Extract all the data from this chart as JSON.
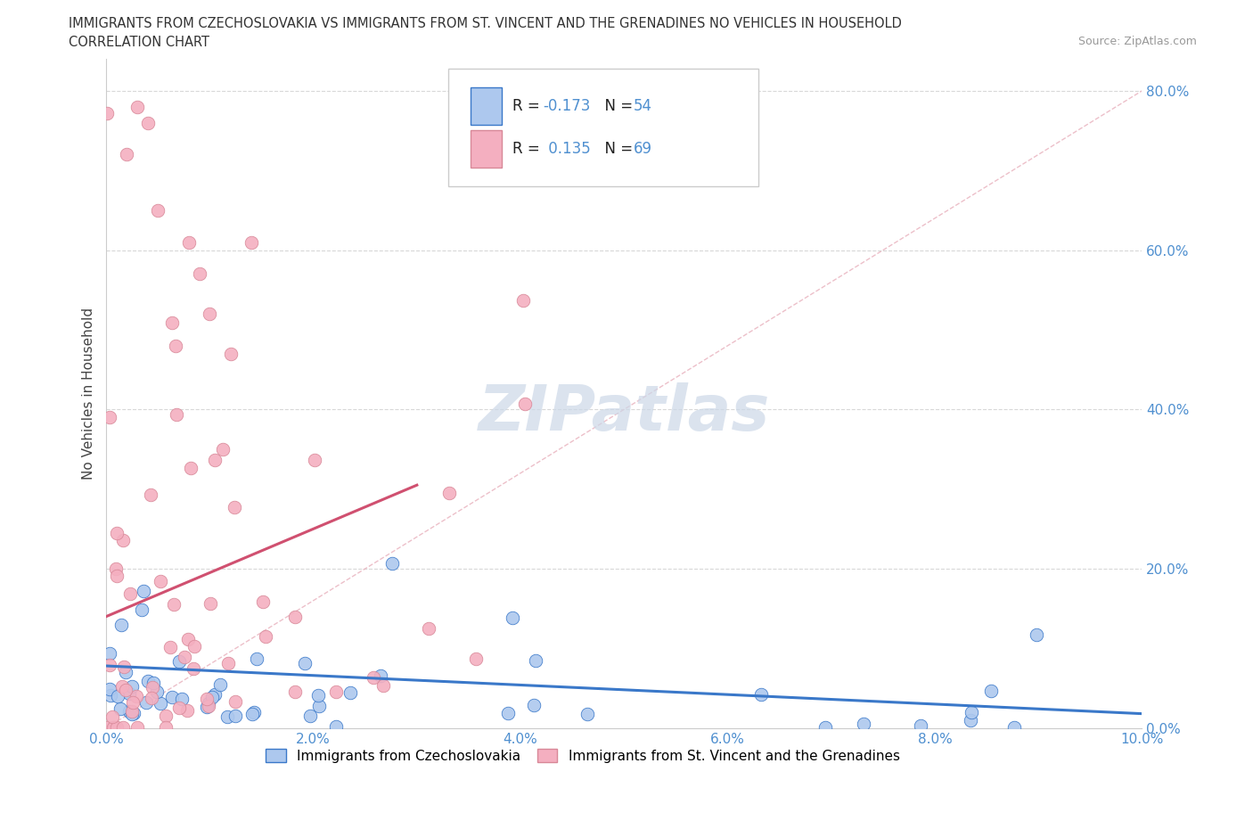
{
  "title_line1": "IMMIGRANTS FROM CZECHOSLOVAKIA VS IMMIGRANTS FROM ST. VINCENT AND THE GRENADINES NO VEHICLES IN HOUSEHOLD",
  "title_line2": "CORRELATION CHART",
  "source_text": "Source: ZipAtlas.com",
  "ylabel": "No Vehicles in Household",
  "xlim": [
    0.0,
    0.1
  ],
  "ylim": [
    0.0,
    0.84
  ],
  "xticks": [
    0.0,
    0.02,
    0.04,
    0.06,
    0.08,
    0.1
  ],
  "xticklabels": [
    "0.0%",
    "2.0%",
    "4.0%",
    "6.0%",
    "8.0%",
    "10.0%"
  ],
  "yticks": [
    0.0,
    0.2,
    0.4,
    0.6,
    0.8
  ],
  "yticklabels": [
    "0.0%",
    "20.0%",
    "40.0%",
    "60.0%",
    "80.0%"
  ],
  "legend1_label": "Immigrants from Czechoslovakia",
  "legend2_label": "Immigrants from St. Vincent and the Grenadines",
  "R1": -0.173,
  "N1": 54,
  "R2": 0.135,
  "N2": 69,
  "color_czech": "#adc8ee",
  "color_vincent": "#f4afc0",
  "color_trend_czech": "#3a78c9",
  "color_trend_vincent": "#d05070",
  "color_diag": "#e8b0bc",
  "watermark_color": "#ccd8e8",
  "background_color": "#ffffff",
  "grid_color": "#d8d8d8",
  "tick_color": "#5090d0"
}
